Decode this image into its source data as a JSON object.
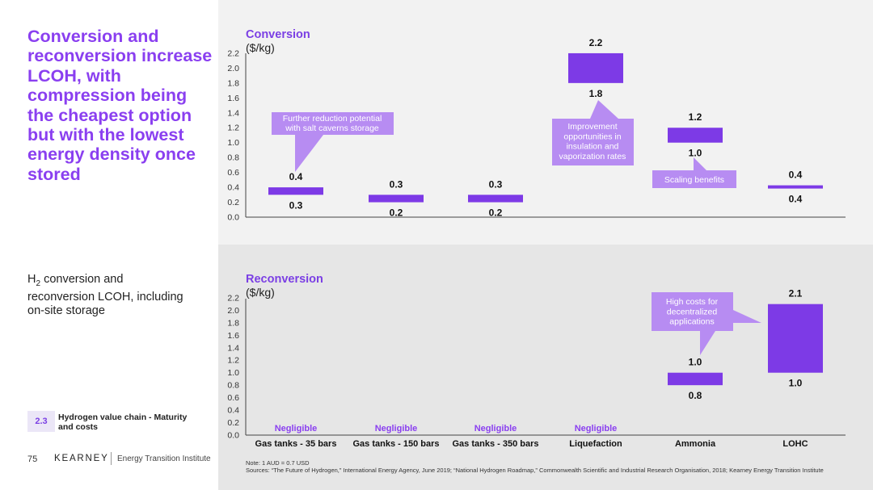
{
  "left_panel": {
    "headline": "Conversion and reconversion increase LCOH, with compression being the cheapest option but with the lowest energy density once stored",
    "subtitle_h": "H",
    "subtitle_sub": "2",
    "subtitle_rest": " conversion and reconversion LCOH, including on-site storage",
    "section_number": "2.3",
    "section_label": "Hydrogen value chain - Maturity and costs",
    "page_number": "75",
    "brand": "KEARNEY",
    "brand_sub": "Energy Transition Institute"
  },
  "footer": {
    "note": "Note: 1 AUD = 0.7 USD",
    "sources": "Sources: “The Future of Hydrogen,” International Energy Agency, June 2019; “National Hydrogen Roadmap,” Commonwealth Scientific and Industrial Research Organisation, 2018; Kearney Energy Transition Institute"
  },
  "colors": {
    "accent": "#7b3fe4",
    "bar": "#7d3ae6",
    "callout": "#b78cf2"
  },
  "chart_data": [
    {
      "type": "floating-bar",
      "title": "Conversion",
      "unit": "($/kg)",
      "ylim": [
        0,
        2.2
      ],
      "yticks": [
        "0.0",
        "0.2",
        "0.4",
        "0.6",
        "0.8",
        "1.0",
        "1.2",
        "1.4",
        "1.6",
        "1.8",
        "2.0",
        "2.2"
      ],
      "categories": [
        "Gas tanks - 35 bars",
        "Gas tanks - 150 bars",
        "Gas tanks - 350 bars",
        "Liquefaction",
        "Ammonia",
        "LOHC"
      ],
      "low": [
        0.3,
        0.2,
        0.2,
        1.8,
        1.0,
        0.4
      ],
      "high": [
        0.4,
        0.3,
        0.3,
        2.2,
        1.2,
        0.4
      ],
      "low_labels": [
        "0.3",
        "0.2",
        "0.2",
        "1.8",
        "1.0",
        "0.4"
      ],
      "high_labels": [
        "0.4",
        "0.3",
        "0.3",
        "2.2",
        "1.2",
        "0.4"
      ],
      "negligible_label": "",
      "callouts": [
        "Further reduction potential with salt caverns storage",
        "Improvement opportunities in insulation and vaporization rates",
        "Scaling benefits"
      ]
    },
    {
      "type": "floating-bar",
      "title": "Reconversion",
      "unit": "($/kg)",
      "ylim": [
        0,
        2.2
      ],
      "yticks": [
        "0.0",
        "0.2",
        "0.4",
        "0.6",
        "0.8",
        "1.0",
        "1.2",
        "1.4",
        "1.6",
        "1.8",
        "2.0",
        "2.2"
      ],
      "categories": [
        "Gas tanks - 35 bars",
        "Gas tanks - 150 bars",
        "Gas tanks - 350 bars",
        "Liquefaction",
        "Ammonia",
        "LOHC"
      ],
      "low": [
        null,
        null,
        null,
        null,
        0.8,
        1.0
      ],
      "high": [
        null,
        null,
        null,
        null,
        1.0,
        2.1
      ],
      "low_labels": [
        "",
        "",
        "",
        "",
        "0.8",
        "1.0"
      ],
      "high_labels": [
        "",
        "",
        "",
        "",
        "1.0",
        "2.1"
      ],
      "negligible_label": "Negligible",
      "callouts": [
        "High costs for decentralized applications"
      ]
    }
  ]
}
